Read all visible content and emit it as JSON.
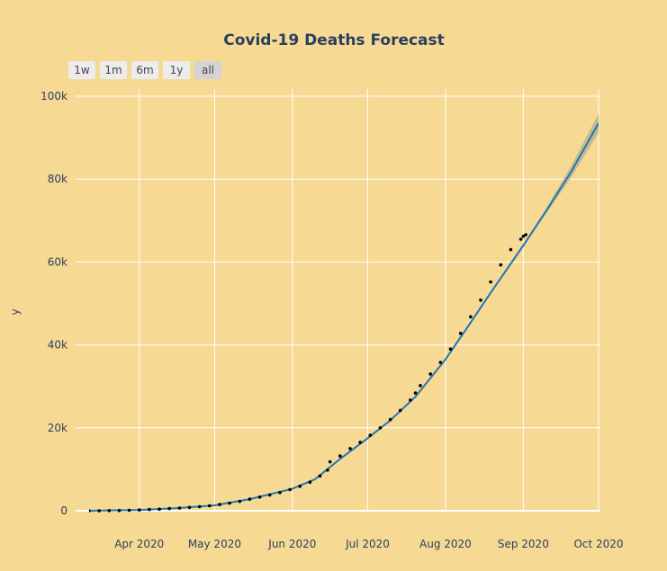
{
  "range_selector": [
    "1w",
    "1m",
    "6m",
    "1y",
    "all"
  ],
  "range_selector_active": "all",
  "colors": {
    "background": "#f6da94",
    "grid": "#ffffff",
    "forecast_line": "#1f77b4",
    "forecast_band": "#b9b28c",
    "observed_points": "#000000",
    "text": "#2a3f5f"
  },
  "chart_data": {
    "type": "line",
    "title": "Covid-19 Deaths  Forecast",
    "xlabel": "",
    "ylabel": "y",
    "xlim": [
      "2020-03-12",
      "2020-10-01"
    ],
    "ylim": [
      0,
      100000
    ],
    "x_ticks": [
      {
        "date": "2020-04-01",
        "label": "Apr 2020"
      },
      {
        "date": "2020-05-01",
        "label": "May 2020"
      },
      {
        "date": "2020-06-01",
        "label": "Jun 2020"
      },
      {
        "date": "2020-07-01",
        "label": "Jul 2020"
      },
      {
        "date": "2020-08-01",
        "label": "Aug 2020"
      },
      {
        "date": "2020-09-01",
        "label": "Sep 2020"
      },
      {
        "date": "2020-10-01",
        "label": "Oct 2020"
      }
    ],
    "y_ticks": [
      {
        "value": 0,
        "label": "0"
      },
      {
        "value": 20000,
        "label": "20k"
      },
      {
        "value": 40000,
        "label": "40k"
      },
      {
        "value": 60000,
        "label": "60k"
      },
      {
        "value": 80000,
        "label": "80k"
      },
      {
        "value": 100000,
        "label": "100k"
      }
    ],
    "grid": true,
    "legend": "none",
    "series": [
      {
        "type": "forecast",
        "x": [
          "2020-03-12",
          "2020-04-01",
          "2020-04-15",
          "2020-05-01",
          "2020-05-15",
          "2020-06-01",
          "2020-06-10",
          "2020-06-20",
          "2020-07-01",
          "2020-07-10",
          "2020-07-20",
          "2020-08-01",
          "2020-08-10",
          "2020-08-20",
          "2020-09-01",
          "2020-09-10",
          "2020-09-20",
          "2020-10-01"
        ],
        "y": [
          0,
          200,
          600,
          1300,
          2800,
          5300,
          7600,
          12500,
          17500,
          21800,
          27500,
          36500,
          44500,
          53500,
          64000,
          72200,
          81700,
          93500
        ],
        "upper": [
          0,
          200,
          600,
          1300,
          2800,
          5300,
          7600,
          12600,
          17600,
          21900,
          27700,
          36700,
          44700,
          53800,
          64300,
          72800,
          83100,
          95800
        ],
        "lower": [
          0,
          200,
          600,
          1300,
          2800,
          5300,
          7600,
          12400,
          17400,
          21700,
          27300,
          36300,
          44300,
          53200,
          63700,
          71600,
          80300,
          91200
        ]
      },
      {
        "type": "observed",
        "x": [
          "2020-03-12",
          "2020-03-16",
          "2020-03-20",
          "2020-03-24",
          "2020-03-28",
          "2020-04-01",
          "2020-04-05",
          "2020-04-09",
          "2020-04-13",
          "2020-04-17",
          "2020-04-21",
          "2020-04-25",
          "2020-04-29",
          "2020-05-03",
          "2020-05-07",
          "2020-05-11",
          "2020-05-15",
          "2020-05-19",
          "2020-05-23",
          "2020-05-27",
          "2020-05-31",
          "2020-06-04",
          "2020-06-08",
          "2020-06-12",
          "2020-06-15",
          "2020-06-16",
          "2020-06-20",
          "2020-06-24",
          "2020-06-28",
          "2020-07-02",
          "2020-07-06",
          "2020-07-10",
          "2020-07-14",
          "2020-07-18",
          "2020-07-20",
          "2020-07-22",
          "2020-07-26",
          "2020-07-30",
          "2020-08-03",
          "2020-08-07",
          "2020-08-11",
          "2020-08-15",
          "2020-08-19",
          "2020-08-23",
          "2020-08-27",
          "2020-08-31",
          "2020-09-01",
          "2020-09-02"
        ],
        "y": [
          0,
          0,
          50,
          70,
          100,
          200,
          300,
          400,
          530,
          650,
          800,
          970,
          1200,
          1500,
          1850,
          2250,
          2800,
          3300,
          3800,
          4400,
          5100,
          5900,
          6900,
          8400,
          9800,
          11800,
          13200,
          15000,
          16500,
          18200,
          20000,
          22000,
          24200,
          26700,
          28400,
          30200,
          33000,
          35800,
          39000,
          42800,
          46800,
          50800,
          55200,
          59300,
          63000,
          65500,
          66200,
          66600
        ]
      }
    ]
  }
}
